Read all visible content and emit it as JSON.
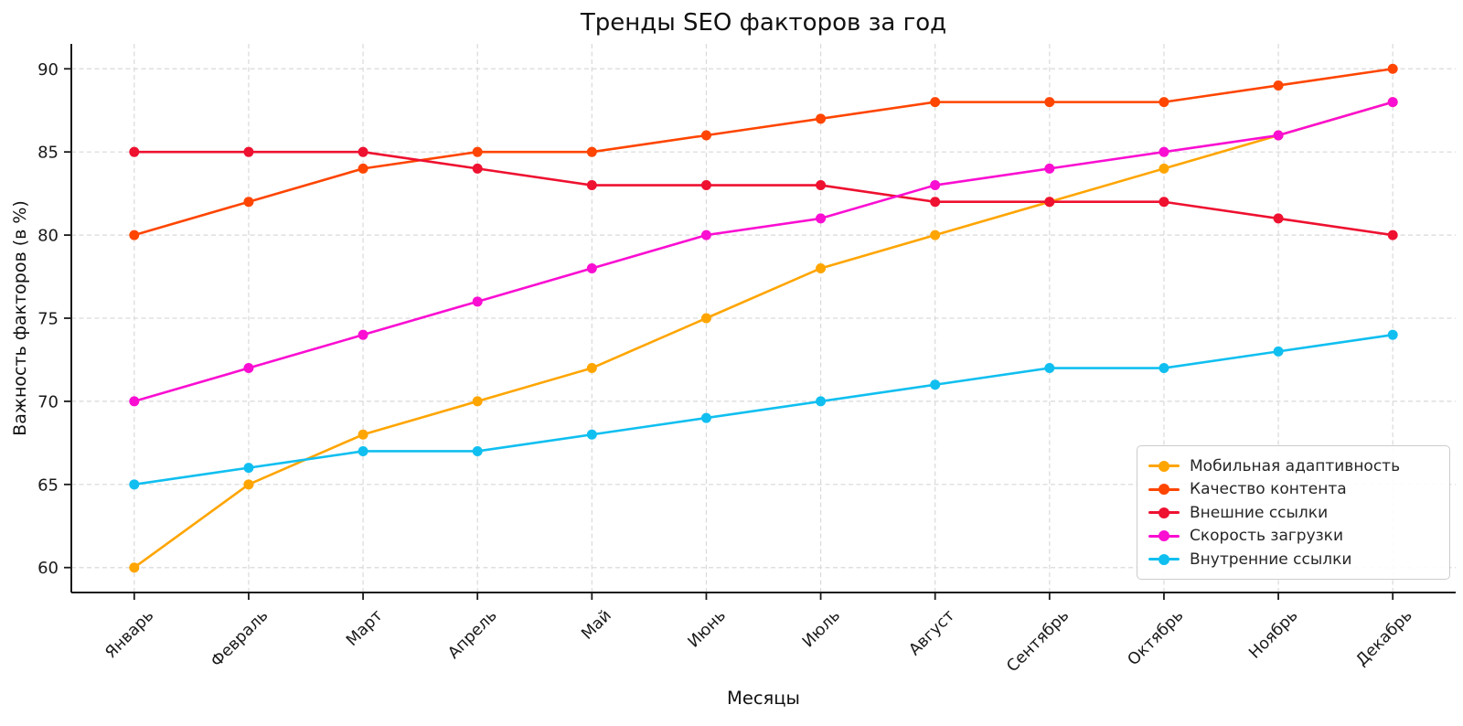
{
  "chart_data": {
    "type": "line",
    "title": "Тренды SEO факторов за год",
    "xlabel": "Месяцы",
    "ylabel": "Важность факторов (в %)",
    "categories": [
      "Январь",
      "Февраль",
      "Март",
      "Апрель",
      "Май",
      "Июнь",
      "Июль",
      "Август",
      "Сентябрь",
      "Октябрь",
      "Ноябрь",
      "Декабрь"
    ],
    "y_ticks": [
      60,
      65,
      70,
      75,
      80,
      85,
      90
    ],
    "ylim": [
      58.5,
      91.5
    ],
    "grid": true,
    "grid_style": "dashed",
    "legend_position": "lower right",
    "axis_color": "#1a1a1a",
    "grid_color": "#d9d9d9",
    "series": [
      {
        "name": "Мобильная адаптивность",
        "color": "#FFA500",
        "values": [
          60,
          65,
          68,
          70,
          72,
          75,
          78,
          80,
          82,
          84,
          86,
          88
        ]
      },
      {
        "name": "Качество контента",
        "color": "#FF4500",
        "values": [
          80,
          82,
          84,
          85,
          85,
          86,
          87,
          88,
          88,
          88,
          89,
          90
        ]
      },
      {
        "name": "Внешние ссылки",
        "color": "#EE1130",
        "values": [
          85,
          85,
          85,
          84,
          83,
          83,
          83,
          82,
          82,
          82,
          81,
          80
        ]
      },
      {
        "name": "Скорость загрузки",
        "color": "#FA0ED2",
        "values": [
          70,
          72,
          74,
          76,
          78,
          80,
          81,
          83,
          84,
          85,
          86,
          88
        ]
      },
      {
        "name": "Внутренние ссылки",
        "color": "#10BFF0",
        "values": [
          65,
          66,
          67,
          67,
          68,
          69,
          70,
          71,
          72,
          72,
          73,
          74
        ]
      }
    ]
  }
}
